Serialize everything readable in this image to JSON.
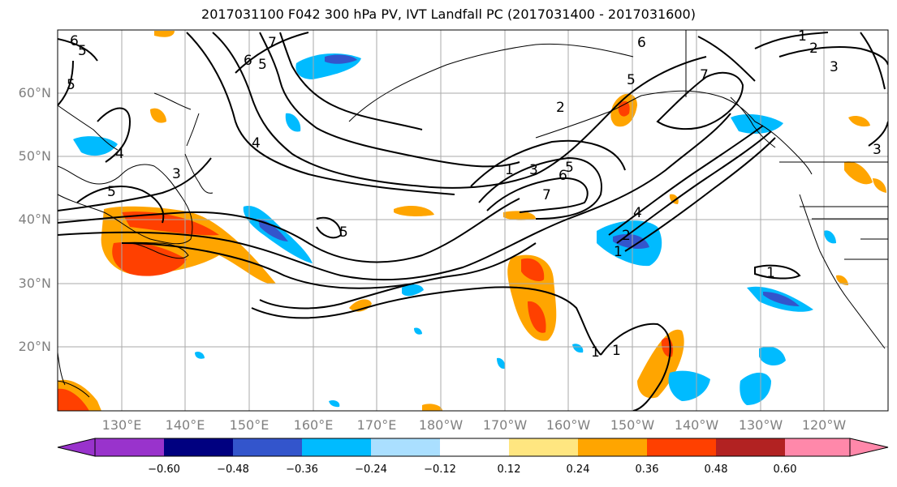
{
  "title": "2017031100 F042 300 hPa PV, IVT Landfall PC (2017031400 - 2017031600)",
  "lat_labels": [
    "60°N",
    "50°N",
    "40°N",
    "30°N",
    "20°N"
  ],
  "lon_labels": [
    "130°E",
    "140°E",
    "150°E",
    "160°E",
    "170°E",
    "180°W",
    "170°W",
    "160°W",
    "150°W",
    "140°W",
    "130°W",
    "120°W"
  ],
  "contour_labels": [
    "6",
    "5",
    "5",
    "7",
    "6",
    "5",
    "4",
    "3",
    "5",
    "5",
    "1",
    "2",
    "3",
    "6",
    "5",
    "4",
    "7",
    "4",
    "2",
    "1",
    "1",
    "1",
    "1",
    "3",
    "7",
    "6",
    "5",
    "2",
    "3",
    "1"
  ],
  "colorbar": {
    "ticks": [
      "−0.60",
      "−0.48",
      "−0.36",
      "−0.24",
      "−0.12",
      "0.12",
      "0.24",
      "0.36",
      "0.48",
      "0.60"
    ],
    "colors": [
      "#9933cc",
      "#000080",
      "#3355cc",
      "#00bbff",
      "#aadfff",
      "#ffffff",
      "#ffe680",
      "#ffa500",
      "#ff4000",
      "#b22222",
      "#ff88aa"
    ]
  }
}
